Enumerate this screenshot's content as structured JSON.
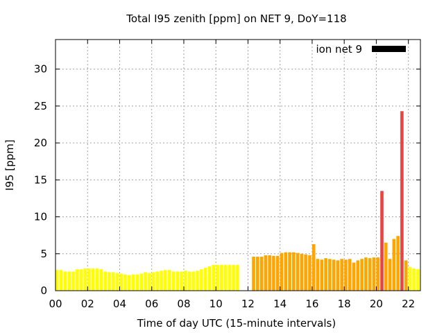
{
  "chart_data": {
    "type": "bar",
    "title": "Total I95 zenith [ppm] on NET 9, DoY=118",
    "xlabel": "Time of day UTC (15-minute intervals)",
    "ylabel": "I95 [ppm]",
    "xlim": [
      0,
      22.75
    ],
    "ylim": [
      0,
      34
    ],
    "xticks": [
      "00",
      "02",
      "04",
      "06",
      "08",
      "10",
      "12",
      "14",
      "16",
      "18",
      "20",
      "22"
    ],
    "xtick_values": [
      0,
      2,
      4,
      6,
      8,
      10,
      12,
      14,
      16,
      18,
      20,
      22
    ],
    "yticks": [
      "0",
      "5",
      "10",
      "15",
      "20",
      "25",
      "30"
    ],
    "ytick_values": [
      0,
      5,
      10,
      15,
      20,
      25,
      30
    ],
    "grid": true,
    "legend": {
      "label": "ion net 9",
      "position": "top-right",
      "color": "#000000"
    },
    "color_levels": {
      "low": "#ffff00",
      "mid": "#ffa500",
      "high": "#e84444"
    },
    "series": [
      {
        "name": "ion net 9",
        "x": [
          0.0,
          0.25,
          0.5,
          0.75,
          1.0,
          1.25,
          1.5,
          1.75,
          2.0,
          2.25,
          2.5,
          2.75,
          3.0,
          3.25,
          3.5,
          3.75,
          4.0,
          4.25,
          4.5,
          4.75,
          5.0,
          5.25,
          5.5,
          5.75,
          6.0,
          6.25,
          6.5,
          6.75,
          7.0,
          7.25,
          7.5,
          7.75,
          8.0,
          8.25,
          8.5,
          8.75,
          9.0,
          9.25,
          9.5,
          9.75,
          10.0,
          10.25,
          10.5,
          10.75,
          11.0,
          11.25,
          12.25,
          12.5,
          12.75,
          13.0,
          13.25,
          13.5,
          13.75,
          14.0,
          14.25,
          14.5,
          14.75,
          15.0,
          15.25,
          15.5,
          15.75,
          16.0,
          16.25,
          16.5,
          16.75,
          17.0,
          17.25,
          17.5,
          17.75,
          18.0,
          18.25,
          18.5,
          18.75,
          19.0,
          19.25,
          19.5,
          19.75,
          20.0,
          20.25,
          20.5,
          20.75,
          21.0,
          21.25,
          21.5,
          21.75,
          22.0,
          22.25,
          22.5
        ],
        "values": [
          2.8,
          2.8,
          2.6,
          2.6,
          2.6,
          2.9,
          2.9,
          3.0,
          3.0,
          3.0,
          3.0,
          2.9,
          2.6,
          2.5,
          2.5,
          2.4,
          2.3,
          2.2,
          2.1,
          2.2,
          2.2,
          2.3,
          2.5,
          2.4,
          2.5,
          2.6,
          2.7,
          2.8,
          2.8,
          2.6,
          2.6,
          2.6,
          2.7,
          2.6,
          2.6,
          2.7,
          2.9,
          3.1,
          3.3,
          3.5,
          3.5,
          3.5,
          3.5,
          3.5,
          3.5,
          3.5,
          4.6,
          4.6,
          4.6,
          4.8,
          4.8,
          4.7,
          4.7,
          5.1,
          5.2,
          5.2,
          5.2,
          5.1,
          5.0,
          4.9,
          4.8,
          6.3,
          4.3,
          4.2,
          4.4,
          4.3,
          4.2,
          4.1,
          4.3,
          4.2,
          4.3,
          3.8,
          4.1,
          4.3,
          4.5,
          4.4,
          4.5,
          4.5,
          13.5,
          6.5,
          4.3,
          7.0,
          7.4,
          24.3,
          4.1,
          3.2,
          3.0,
          2.9
        ]
      }
    ]
  }
}
